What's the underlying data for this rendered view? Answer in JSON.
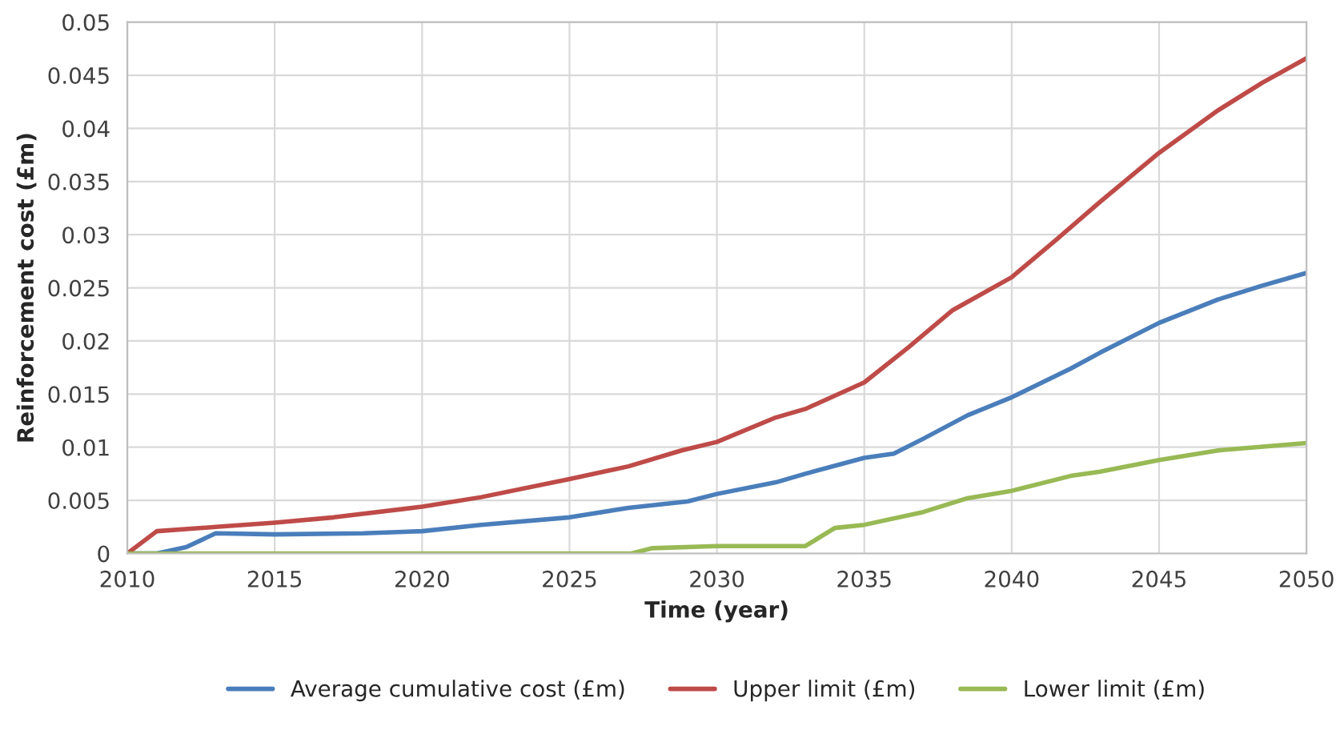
{
  "chart_data": {
    "type": "line",
    "xlabel": "Time (year)",
    "ylabel": "Reinforcement cost (£m)",
    "xlim": [
      2010,
      2050
    ],
    "xticks": [
      2010,
      2015,
      2020,
      2025,
      2030,
      2035,
      2040,
      2045,
      2050
    ],
    "ylim": [
      0,
      0.05
    ],
    "yticks": [
      0,
      0.005,
      0.01,
      0.015,
      0.02,
      0.025,
      0.03,
      0.035,
      0.04,
      0.045,
      0.05
    ],
    "grid": true,
    "legend": "bottom",
    "marker": "none",
    "line_style": "solid",
    "series": [
      {
        "name": "Average cumulative cost (£m)",
        "color": "#4a7ebb",
        "x": [
          2010,
          2011,
          2012,
          2013,
          2015,
          2018,
          2020,
          2022,
          2025,
          2027,
          2029,
          2030,
          2032,
          2033,
          2035,
          2036,
          2037,
          2038.5,
          2040,
          2042,
          2043,
          2045,
          2047,
          2048.5,
          2050
        ],
        "values": [
          0,
          0,
          0.0006,
          0.0019,
          0.0018,
          0.0019,
          0.0021,
          0.0027,
          0.0034,
          0.0043,
          0.0049,
          0.0056,
          0.0067,
          0.0075,
          0.009,
          0.0094,
          0.0108,
          0.013,
          0.0147,
          0.0174,
          0.0189,
          0.0217,
          0.0239,
          0.0252,
          0.0264
        ]
      },
      {
        "name": "Upper limit (£m)",
        "color": "#be4b48",
        "x": [
          2010,
          2011,
          2013,
          2015,
          2017,
          2020,
          2022,
          2025,
          2027,
          2028.8,
          2030,
          2032,
          2033,
          2035,
          2036.5,
          2038,
          2040,
          2041.5,
          2043,
          2045,
          2047,
          2048.5,
          2050
        ],
        "values": [
          0,
          0.0021,
          0.0025,
          0.0029,
          0.0034,
          0.0044,
          0.0053,
          0.007,
          0.0082,
          0.0097,
          0.0105,
          0.0128,
          0.0136,
          0.0161,
          0.0194,
          0.0229,
          0.026,
          0.0295,
          0.0331,
          0.0377,
          0.0417,
          0.0443,
          0.0466
        ]
      },
      {
        "name": "Lower limit (£m)",
        "color": "#98b954",
        "x": [
          2010,
          2027.1,
          2027.8,
          2030,
          2033,
          2034,
          2035,
          2037,
          2038.5,
          2040,
          2042,
          2043,
          2045,
          2047,
          2050
        ],
        "values": [
          0,
          0,
          0.0005,
          0.0007,
          0.0007,
          0.0024,
          0.0027,
          0.0039,
          0.0052,
          0.0059,
          0.0073,
          0.0077,
          0.0088,
          0.0097,
          0.0104
        ]
      }
    ]
  }
}
